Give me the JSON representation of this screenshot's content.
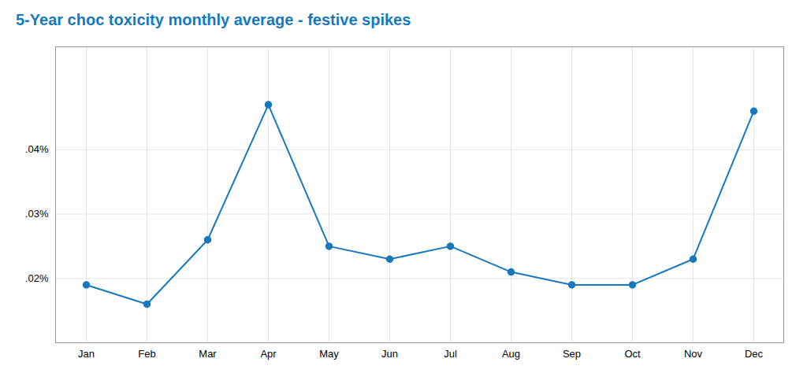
{
  "chart_data": {
    "type": "line",
    "title": "5-Year choc toxicity monthly average - festive spikes",
    "categories": [
      "Jan",
      "Feb",
      "Mar",
      "Apr",
      "May",
      "Jun",
      "Jul",
      "Aug",
      "Sep",
      "Oct",
      "Nov",
      "Dec"
    ],
    "values": [
      0.019,
      0.016,
      0.026,
      0.047,
      0.025,
      0.023,
      0.025,
      0.021,
      0.019,
      0.019,
      0.023,
      0.046
    ],
    "color": "#1878be",
    "marker": "circle",
    "ylim": [
      0.01,
      0.056
    ],
    "yticks": [
      {
        "value": 0.02,
        "label": ".02%"
      },
      {
        "value": 0.03,
        "label": ".03%"
      },
      {
        "value": 0.04,
        "label": ".04%"
      }
    ],
    "grid": true
  }
}
